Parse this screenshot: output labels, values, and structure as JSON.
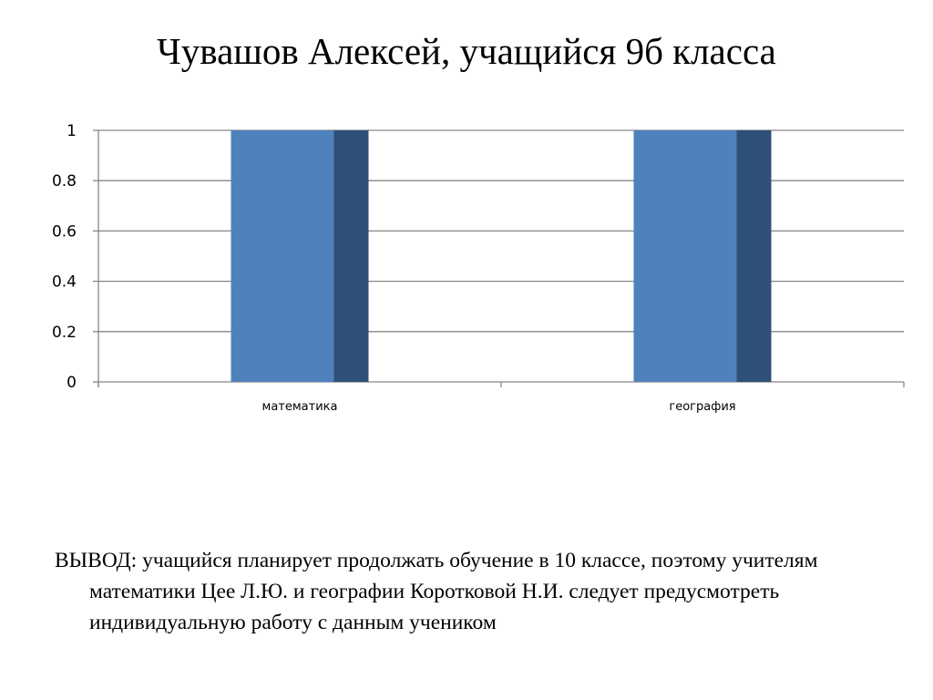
{
  "slide": {
    "title": "Чувашов Алексей, учащийся 9б  класса",
    "conclusion": "ВЫВОД: учащийся планирует продолжать обучение в 10 классе, поэтому учителям математики Цее Л.Ю. и географии Коротковой Н.И. следует предусмотреть  индивидуальную работу с данным учеником"
  },
  "chart_data": {
    "type": "bar",
    "categories": [
      "математика",
      "география"
    ],
    "values": [
      1,
      1
    ],
    "ylim": [
      0,
      1
    ],
    "yticks": [
      "0",
      "0.2",
      "0.4",
      "0.6",
      "0.8",
      "1"
    ],
    "grid": true,
    "legend": "none",
    "bar_color": "#4f81bd",
    "bar_side_color": "#2f5078",
    "grid_color": "#868686"
  }
}
